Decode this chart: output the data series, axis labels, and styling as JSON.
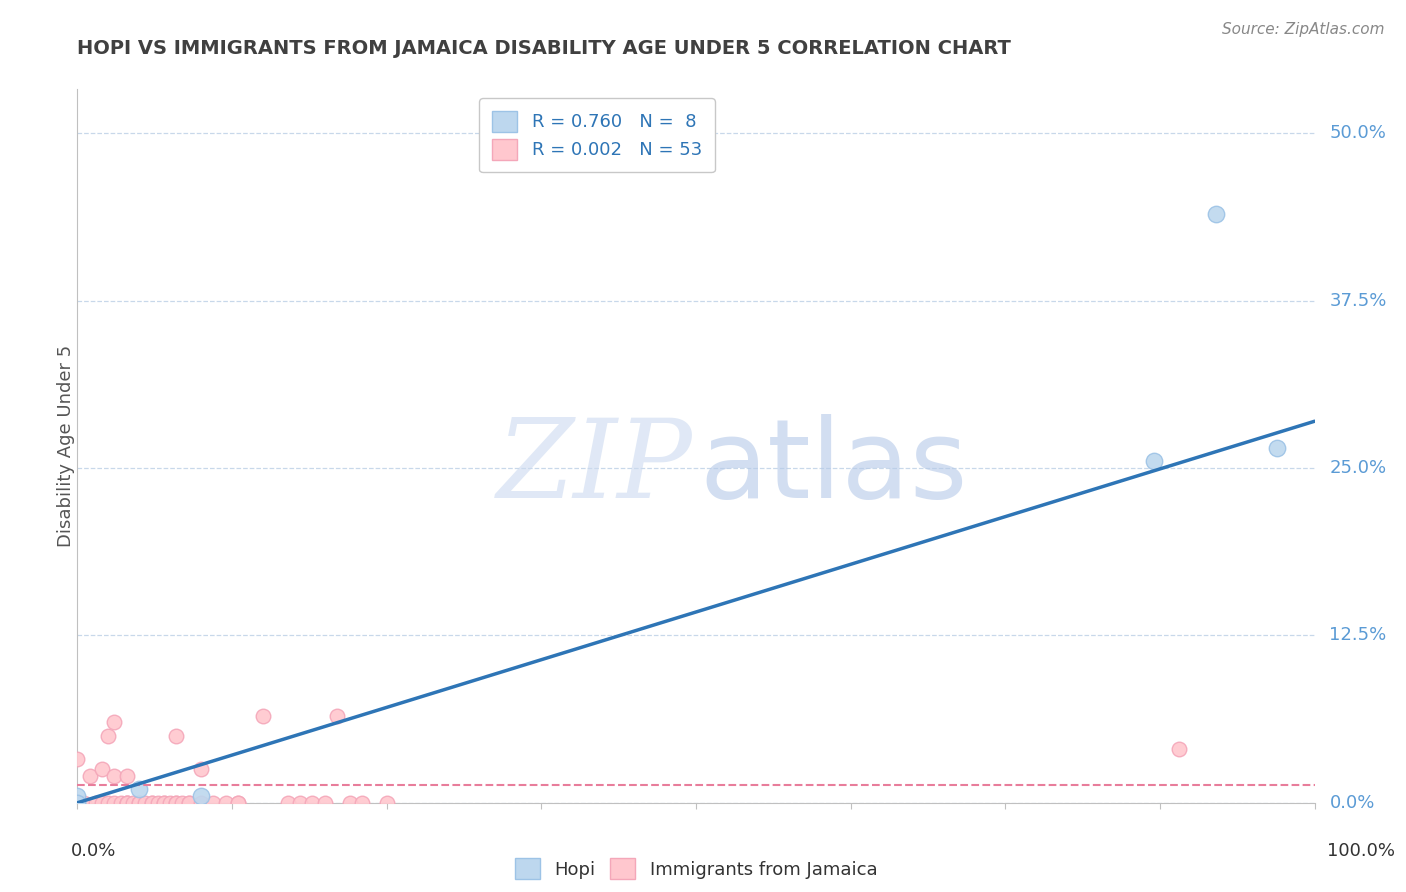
{
  "title": "HOPI VS IMMIGRANTS FROM JAMAICA DISABILITY AGE UNDER 5 CORRELATION CHART",
  "source": "Source: ZipAtlas.com",
  "ylabel": "Disability Age Under 5",
  "xlabel": "",
  "xlim": [
    0.0,
    1.0
  ],
  "ylim": [
    0.0,
    0.533
  ],
  "xticks": [
    0.0,
    0.125,
    0.25,
    0.375,
    0.5,
    0.625,
    0.75,
    0.875,
    1.0
  ],
  "yticks": [
    0.0,
    0.125,
    0.25,
    0.375,
    0.5
  ],
  "ytick_labels": [
    "0.0%",
    "12.5%",
    "25.0%",
    "37.5%",
    "50.0%"
  ],
  "hopi_R": 0.76,
  "hopi_N": 8,
  "jamaica_R": 0.002,
  "jamaica_N": 53,
  "hopi_color": "#bdd7ee",
  "hopi_edge_color": "#9dc3e6",
  "hopi_line_color": "#2e75b6",
  "jamaica_color": "#ffc7ce",
  "jamaica_edge_color": "#f4a7b9",
  "jamaica_line_color": "#e87d9b",
  "hopi_points": [
    [
      0.0,
      0.0
    ],
    [
      0.0,
      0.005
    ],
    [
      0.05,
      0.01
    ],
    [
      0.1,
      0.005
    ],
    [
      0.87,
      0.255
    ],
    [
      0.92,
      0.44
    ],
    [
      0.97,
      0.265
    ],
    [
      0.0,
      0.0
    ]
  ],
  "jamaica_points": [
    [
      0.0,
      0.033
    ],
    [
      0.005,
      0.0
    ],
    [
      0.01,
      0.02
    ],
    [
      0.015,
      0.0
    ],
    [
      0.02,
      0.0
    ],
    [
      0.02,
      0.025
    ],
    [
      0.025,
      0.05
    ],
    [
      0.025,
      0.0
    ],
    [
      0.03,
      0.0
    ],
    [
      0.03,
      0.06
    ],
    [
      0.03,
      0.02
    ],
    [
      0.035,
      0.0
    ],
    [
      0.04,
      0.0
    ],
    [
      0.04,
      0.0
    ],
    [
      0.04,
      0.02
    ],
    [
      0.04,
      0.0
    ],
    [
      0.045,
      0.0
    ],
    [
      0.05,
      0.0
    ],
    [
      0.05,
      0.0
    ],
    [
      0.055,
      0.0
    ],
    [
      0.06,
      0.0
    ],
    [
      0.06,
      0.0
    ],
    [
      0.065,
      0.0
    ],
    [
      0.07,
      0.0
    ],
    [
      0.07,
      0.0
    ],
    [
      0.075,
      0.0
    ],
    [
      0.08,
      0.0
    ],
    [
      0.08,
      0.05
    ],
    [
      0.08,
      0.0
    ],
    [
      0.085,
      0.0
    ],
    [
      0.09,
      0.0
    ],
    [
      0.09,
      0.0
    ],
    [
      0.1,
      0.0
    ],
    [
      0.1,
      0.025
    ],
    [
      0.11,
      0.0
    ],
    [
      0.12,
      0.0
    ],
    [
      0.13,
      0.0
    ],
    [
      0.13,
      0.0
    ],
    [
      0.15,
      0.065
    ],
    [
      0.17,
      0.0
    ],
    [
      0.18,
      0.0
    ],
    [
      0.19,
      0.0
    ],
    [
      0.2,
      0.0
    ],
    [
      0.21,
      0.065
    ],
    [
      0.22,
      0.0
    ],
    [
      0.23,
      0.0
    ],
    [
      0.25,
      0.0
    ],
    [
      0.0,
      0.0
    ],
    [
      0.0,
      0.0
    ],
    [
      0.0,
      0.0
    ],
    [
      0.89,
      0.04
    ],
    [
      0.0,
      0.0
    ],
    [
      0.0,
      0.0
    ]
  ],
  "hopi_trend_x": [
    0.0,
    1.0
  ],
  "hopi_trend_y": [
    0.0,
    0.285
  ],
  "jamaica_trend_x": [
    0.0,
    1.0
  ],
  "jamaica_trend_y": [
    0.013,
    0.013
  ],
  "watermark_zip": "ZIP",
  "watermark_atlas": "atlas",
  "background_color": "#ffffff",
  "grid_color": "#c8d8ea",
  "tick_color": "#5b9bd5",
  "title_color": "#404040",
  "axis_color": "#c0c0c0"
}
